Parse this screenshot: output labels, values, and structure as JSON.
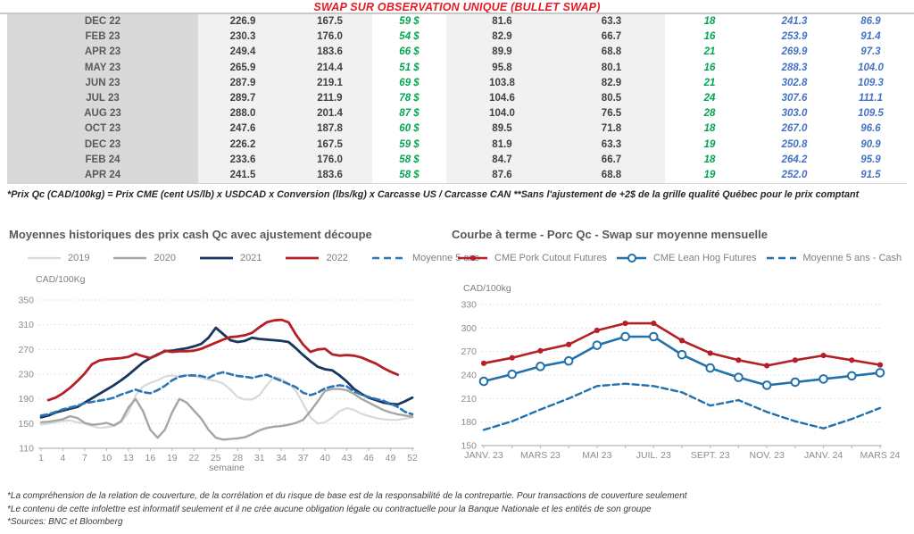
{
  "page_title": "SWAP SUR OBSERVATION UNIQUE (BULLET SWAP)",
  "table": {
    "rows": [
      [
        "DEC 22",
        "226.9",
        "167.5",
        "59 $",
        "81.6",
        "63.3",
        "18",
        "241.3",
        "86.9"
      ],
      [
        "FEB 23",
        "230.3",
        "176.0",
        "54 $",
        "82.9",
        "66.7",
        "16",
        "253.9",
        "91.4"
      ],
      [
        "APR 23",
        "249.4",
        "183.6",
        "66 $",
        "89.9",
        "68.8",
        "21",
        "269.9",
        "97.3"
      ],
      [
        "MAY 23",
        "265.9",
        "214.4",
        "51 $",
        "95.8",
        "80.1",
        "16",
        "288.3",
        "104.0"
      ],
      [
        "JUN 23",
        "287.9",
        "219.1",
        "69 $",
        "103.8",
        "82.9",
        "21",
        "302.8",
        "109.3"
      ],
      [
        "JUL 23",
        "289.7",
        "211.9",
        "78 $",
        "104.6",
        "80.5",
        "24",
        "307.6",
        "111.1"
      ],
      [
        "AUG 23",
        "288.0",
        "201.4",
        "87 $",
        "104.0",
        "76.5",
        "28",
        "303.0",
        "109.5"
      ],
      [
        "OCT 23",
        "247.6",
        "187.8",
        "60 $",
        "89.5",
        "71.8",
        "18",
        "267.0",
        "96.6"
      ],
      [
        "DEC 23",
        "226.2",
        "167.5",
        "59 $",
        "81.9",
        "63.3",
        "19",
        "250.8",
        "90.9"
      ],
      [
        "FEB 24",
        "233.6",
        "176.0",
        "58 $",
        "84.7",
        "66.7",
        "18",
        "264.2",
        "95.9"
      ],
      [
        "APR 24",
        "241.5",
        "183.6",
        "58 $",
        "87.6",
        "68.8",
        "19",
        "252.0",
        "91.5"
      ]
    ],
    "note": "*Prix Qc (CAD/100kg) = Prix CME (cent US/lb) x USDCAD x Conversion (lbs/kg) x Carcasse US / Carcasse CAN **Sans l'ajustement de +2$ de la grille qualité Québec pour le prix comptant"
  },
  "chart_data": [
    {
      "type": "line",
      "title": "Moyennes historiques des prix cash Qc avec ajustement découpe",
      "ylabel": "CAD/100Kg",
      "xlabel": "semaine",
      "ylim": [
        110,
        350
      ],
      "yticks": [
        110,
        150,
        190,
        230,
        270,
        310,
        350
      ],
      "xticks": [
        {
          "label": "1",
          "i": 0
        },
        {
          "label": "4",
          "i": 3
        },
        {
          "label": "7",
          "i": 6
        },
        {
          "label": "10",
          "i": 9
        },
        {
          "label": "13",
          "i": 12
        },
        {
          "label": "16",
          "i": 15
        },
        {
          "label": "19",
          "i": 18
        },
        {
          "label": "22",
          "i": 21
        },
        {
          "label": "25",
          "i": 24
        },
        {
          "label": "28",
          "i": 27
        },
        {
          "label": "31",
          "i": 30
        },
        {
          "label": "34",
          "i": 33
        },
        {
          "label": "37",
          "i": 36
        },
        {
          "label": "40",
          "i": 39
        },
        {
          "label": "43",
          "i": 42
        },
        {
          "label": "46",
          "i": 45
        },
        {
          "label": "49",
          "i": 48
        },
        {
          "label": "52",
          "i": 51
        }
      ],
      "series": [
        {
          "name": "2019",
          "color": "#d9d9d9",
          "style": "solid",
          "width": 2.2,
          "values": [
            148,
            150,
            152,
            154,
            155,
            152,
            150,
            146,
            143,
            144,
            146,
            152,
            168,
            196,
            210,
            216,
            220,
            226,
            228,
            226,
            228,
            227,
            224,
            221,
            219,
            215,
            205,
            193,
            189,
            189,
            196,
            212,
            226,
            222,
            215,
            203,
            182,
            160,
            150,
            152,
            160,
            170,
            175,
            172,
            166,
            162,
            159,
            157,
            156,
            156,
            158,
            160
          ]
        },
        {
          "name": "2020",
          "color": "#a6a6a6",
          "style": "solid",
          "width": 2.4,
          "values": [
            152,
            153,
            155,
            157,
            162,
            159,
            151,
            148,
            149,
            151,
            147,
            154,
            176,
            190,
            170,
            140,
            127,
            140,
            168,
            190,
            184,
            171,
            158,
            140,
            127,
            124,
            125,
            126,
            128,
            133,
            139,
            143,
            145,
            146,
            148,
            151,
            156,
            170,
            186,
            203,
            206,
            206,
            204,
            198,
            190,
            184,
            178,
            172,
            168,
            165,
            163,
            161
          ]
        },
        {
          "name": "2021",
          "color": "#17375e",
          "style": "solid",
          "width": 2.8,
          "values": [
            160,
            163,
            168,
            171,
            174,
            177,
            184,
            191,
            198,
            205,
            212,
            220,
            229,
            239,
            249,
            256,
            262,
            267,
            268,
            270,
            272,
            275,
            279,
            289,
            305,
            295,
            285,
            282,
            284,
            289,
            287,
            286,
            285,
            284,
            282,
            272,
            261,
            251,
            242,
            238,
            236,
            228,
            218,
            206,
            198,
            192,
            188,
            184,
            182,
            181,
            186,
            192
          ]
        },
        {
          "name": "2022",
          "color": "#b42025",
          "style": "solid",
          "width": 2.8,
          "values": [
            null,
            188,
            192,
            199,
            208,
            219,
            231,
            246,
            252,
            254,
            255,
            256,
            258,
            263,
            259,
            256,
            261,
            268,
            266,
            267,
            267,
            268,
            271,
            276,
            281,
            286,
            290,
            291,
            293,
            297,
            306,
            314,
            317,
            318,
            314,
            294,
            278,
            266,
            270,
            271,
            262,
            260,
            261,
            260,
            257,
            252,
            247,
            240,
            234,
            229,
            null,
            null
          ]
        },
        {
          "name": "Moyenne 5 ans",
          "color": "#2e75b6",
          "style": "dashed",
          "width": 2.6,
          "values": [
            163,
            165,
            169,
            173,
            176,
            179,
            183,
            185,
            187,
            189,
            192,
            197,
            201,
            205,
            201,
            199,
            204,
            211,
            220,
            226,
            228,
            228,
            227,
            224,
            230,
            233,
            230,
            227,
            226,
            224,
            227,
            229,
            224,
            219,
            214,
            209,
            200,
            196,
            200,
            207,
            210,
            212,
            210,
            202,
            197,
            193,
            190,
            187,
            182,
            177,
            169,
            165
          ]
        }
      ]
    },
    {
      "type": "line",
      "title": "Courbe à terme - Porc Qc - Swap sur moyenne mensuelle",
      "ylabel": "CAD/100kg",
      "xlabel": "",
      "ylim": [
        150,
        330
      ],
      "yticks": [
        150,
        180,
        210,
        240,
        270,
        300,
        330
      ],
      "xticks": [
        {
          "label": "JANV. 23",
          "i": 0
        },
        {
          "label": "MARS 23",
          "i": 2
        },
        {
          "label": "MAI 23",
          "i": 4
        },
        {
          "label": "JUIL. 23",
          "i": 6
        },
        {
          "label": "SEPT. 23",
          "i": 8
        },
        {
          "label": "NOV. 23",
          "i": 10
        },
        {
          "label": "JANV. 24",
          "i": 12
        },
        {
          "label": "MARS 24",
          "i": 14
        }
      ],
      "series": [
        {
          "name": "CME Pork Cutout Futures",
          "color": "#b42025",
          "style": "solid",
          "width": 2.6,
          "marker": "dot",
          "values": [
            255,
            262,
            271,
            279,
            297,
            306,
            306,
            284,
            268,
            259,
            252,
            259,
            265,
            259,
            253
          ]
        },
        {
          "name": "CME Lean Hog Futures",
          "color": "#2271ab",
          "style": "solid",
          "width": 2.6,
          "marker": "circle",
          "values": [
            232,
            241,
            251,
            258,
            278,
            289,
            289,
            266,
            249,
            237,
            227,
            231,
            235,
            239,
            243
          ]
        },
        {
          "name": "Moyenne 5 ans - Cash",
          "color": "#2271ab",
          "style": "dashed",
          "width": 2.4,
          "values": [
            170,
            181,
            196,
            210,
            226,
            229,
            226,
            218,
            201,
            208,
            193,
            181,
            172,
            184,
            198
          ]
        }
      ]
    }
  ],
  "footer": {
    "lines": [
      "*La compréhension de la relation de couverture, de la corrélation et du risque de base est de la responsabilité de la contrepartie. Pour transactions de couverture seulement",
      "*Le contenu de cette infolettre est informatif seulement et il ne crée aucune obligation légale ou contractuelle pour la Banque Nationale et les entités de son groupe",
      "*Sources: BNC et Bloomberg"
    ]
  }
}
